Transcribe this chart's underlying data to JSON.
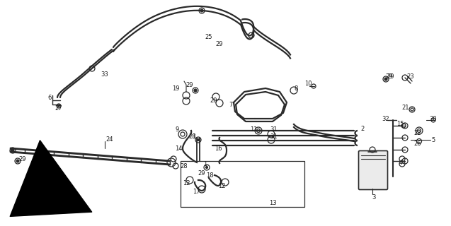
{
  "bg_color": "#ffffff",
  "line_color": "#2a2a2a",
  "label_color": "#1a1a1a",
  "lw_hose": 1.6,
  "lw_pipe": 1.3,
  "lw_thin": 0.8,
  "font_size": 6.0
}
